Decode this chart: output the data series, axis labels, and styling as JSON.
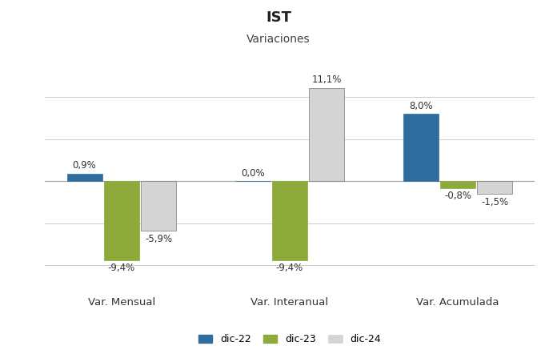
{
  "title": "IST",
  "subtitle": "Variaciones",
  "categories": [
    "Var. Mensual",
    "Var. Interanual",
    "Var. Acumulada"
  ],
  "colors": {
    "dic-22": "#2E6D9E",
    "dic-23": "#8DAA3A",
    "dic-24": "#D4D4D4"
  },
  "values": {
    "dic-22": [
      0.9,
      0.0,
      8.0
    ],
    "dic-23": [
      -9.4,
      -9.4,
      -0.8
    ],
    "dic-24": [
      -5.9,
      11.1,
      -1.5
    ]
  },
  "labels": {
    "dic-22": [
      "0,9%",
      "0,0%",
      "8,0%"
    ],
    "dic-23": [
      "-9,4%",
      "-9,4%",
      "-0,8%"
    ],
    "dic-24": [
      "-5,9%",
      "11,1%",
      "-1,5%"
    ]
  },
  "ylim": [
    -13,
    14
  ],
  "background_color": "#FFFFFF",
  "grid_color": "#CCCCCC",
  "bar_width": 0.22,
  "label_fontsize": 8.5,
  "cat_fontsize": 9.5,
  "legend_fontsize": 9,
  "title_fontsize": 13,
  "subtitle_fontsize": 10
}
